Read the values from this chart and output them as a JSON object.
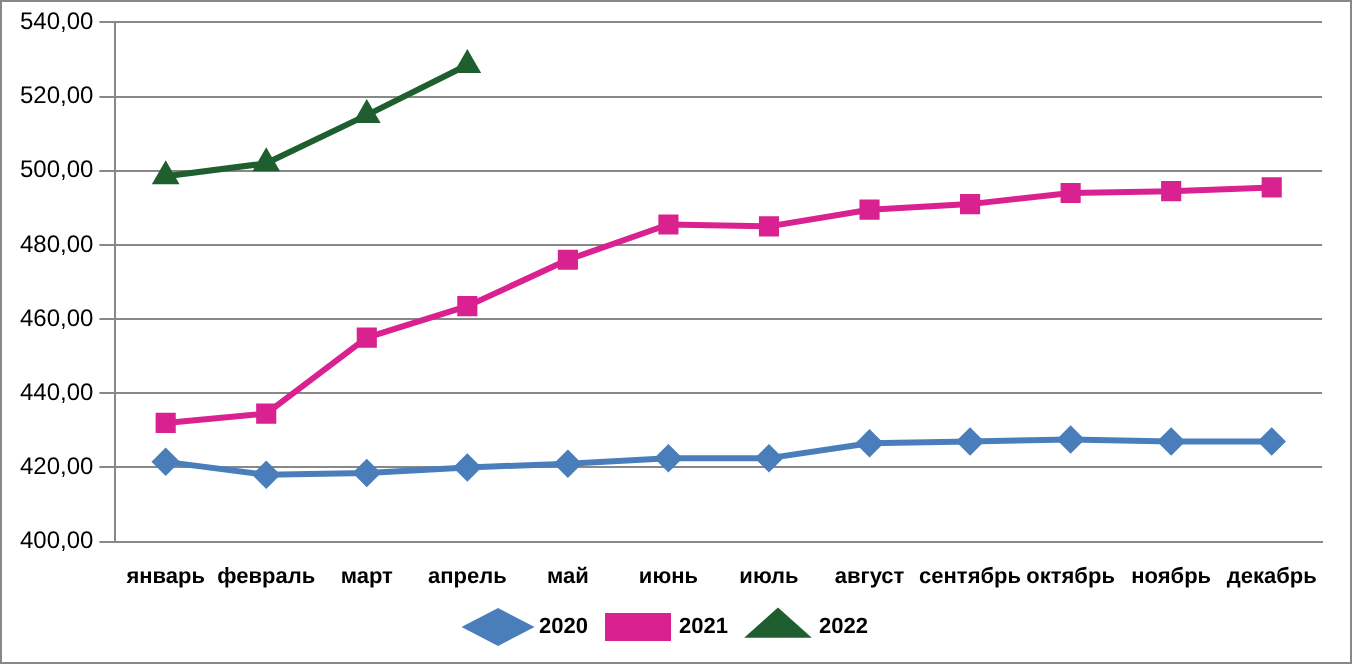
{
  "chart_data": {
    "type": "line",
    "categories": [
      "январь",
      "февраль",
      "март",
      "апрель",
      "май",
      "июнь",
      "июль",
      "август",
      "сентябрь",
      "октябрь",
      "ноябрь",
      "декабрь"
    ],
    "series": [
      {
        "name": "2020",
        "color": "#4a7ebb",
        "marker": "diamond",
        "values": [
          421.5,
          418,
          418.5,
          420,
          421,
          422.5,
          422.5,
          426.5,
          427,
          427.5,
          427,
          427
        ]
      },
      {
        "name": "2021",
        "color": "#d9228f",
        "marker": "square",
        "values": [
          432,
          434.5,
          455,
          463.5,
          476,
          485.5,
          485,
          489.5,
          491,
          494,
          494.5,
          495.5
        ]
      },
      {
        "name": "2022",
        "color": "#1f5e2e",
        "marker": "triangle",
        "values": [
          498.5,
          502,
          515,
          528.5,
          null,
          null,
          null,
          null,
          null,
          null,
          null,
          null
        ]
      }
    ],
    "ylim": [
      400,
      540
    ],
    "yticks": [
      {
        "value": 400,
        "label": "400,00"
      },
      {
        "value": 420,
        "label": "420,00"
      },
      {
        "value": 440,
        "label": "440,00"
      },
      {
        "value": 460,
        "label": "460,00"
      },
      {
        "value": 480,
        "label": "480,00"
      },
      {
        "value": 500,
        "label": "500,00"
      },
      {
        "value": 520,
        "label": "520,00"
      },
      {
        "value": 540,
        "label": "540,00"
      }
    ],
    "grid": "y",
    "legend": "bottom",
    "line_style": "solid"
  }
}
